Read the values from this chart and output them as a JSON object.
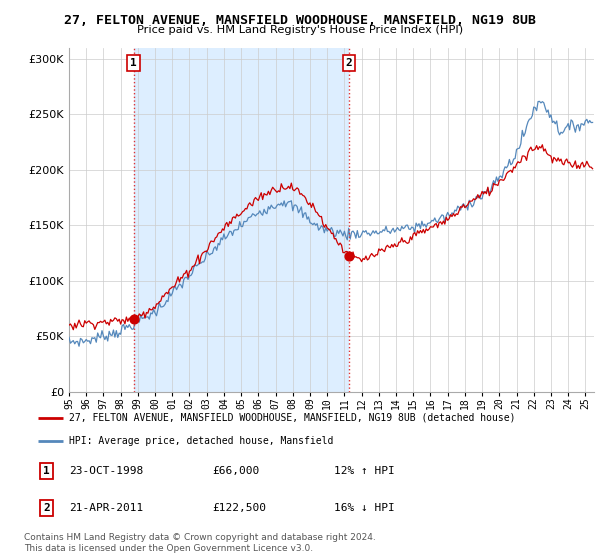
{
  "title": "27, FELTON AVENUE, MANSFIELD WOODHOUSE, MANSFIELD, NG19 8UB",
  "subtitle": "Price paid vs. HM Land Registry's House Price Index (HPI)",
  "legend_line1": "27, FELTON AVENUE, MANSFIELD WOODHOUSE, MANSFIELD, NG19 8UB (detached house)",
  "legend_line2": "HPI: Average price, detached house, Mansfield",
  "annotation1_date": "23-OCT-1998",
  "annotation1_price": "£66,000",
  "annotation1_hpi": "12% ↑ HPI",
  "annotation2_date": "21-APR-2011",
  "annotation2_price": "£122,500",
  "annotation2_hpi": "16% ↓ HPI",
  "footer": "Contains HM Land Registry data © Crown copyright and database right 2024.\nThis data is licensed under the Open Government Licence v3.0.",
  "red_color": "#cc0000",
  "blue_color": "#5588bb",
  "shade_color": "#ddeeff",
  "vline_color": "#dd3333",
  "ylim": [
    0,
    310000
  ],
  "yticks": [
    0,
    50000,
    100000,
    150000,
    200000,
    250000,
    300000
  ],
  "year_start": 1995,
  "year_end": 2025,
  "sale1_year": 1998,
  "sale1_month": 10,
  "sale1_value": 66000,
  "sale2_year": 2011,
  "sale2_month": 4,
  "sale2_value": 122500
}
